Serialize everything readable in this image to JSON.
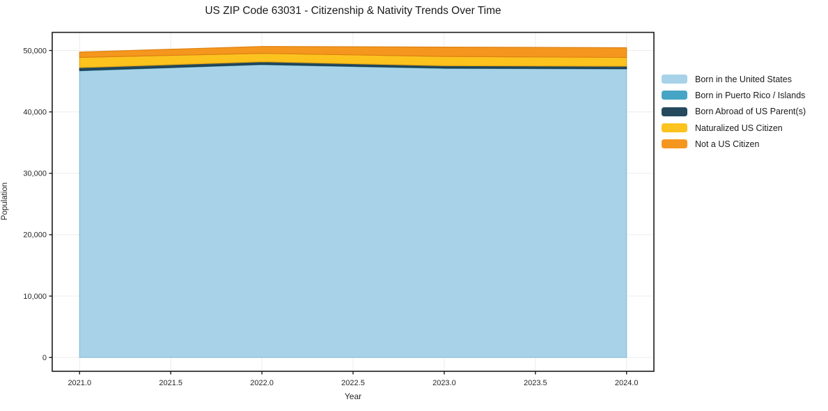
{
  "chart_data": {
    "type": "area",
    "stacked": true,
    "title": "US ZIP Code 63031 - Citizenship & Nativity Trends Over Time",
    "xlabel": "Year",
    "ylabel": "Population",
    "x": [
      2021,
      2022,
      2023,
      2024
    ],
    "series": [
      {
        "name": "Born in the United States",
        "color": "#A7D2E8",
        "edge_color": "#8CBFDA",
        "values": [
          46700,
          47700,
          47100,
          47000
        ]
      },
      {
        "name": "Born in Puerto Rico / Islands",
        "color": "#46A5C4",
        "edge_color": "#3A93B1",
        "values": [
          50,
          50,
          50,
          50
        ]
      },
      {
        "name": "Born Abroad of US Parent(s)",
        "color": "#25495D",
        "edge_color": "#1C3A4B",
        "values": [
          470,
          420,
          380,
          400
        ]
      },
      {
        "name": "Naturalized US Citizen",
        "color": "#FCC31F",
        "edge_color": "#E3A912",
        "values": [
          1660,
          1360,
          1510,
          1410
        ]
      },
      {
        "name": "Not a US Citizen",
        "color": "#F5971E",
        "edge_color": "#DD8112",
        "values": [
          870,
          1130,
          1520,
          1590
        ]
      }
    ],
    "xticks": {
      "values": [
        2021.0,
        2021.5,
        2022.0,
        2022.5,
        2023.0,
        2023.5,
        2024.0
      ],
      "labels": [
        "2021.0",
        "2021.5",
        "2022.0",
        "2022.5",
        "2023.0",
        "2023.5",
        "2024.0"
      ]
    },
    "yticks": {
      "values": [
        0,
        10000,
        20000,
        30000,
        40000,
        50000
      ],
      "labels": [
        "0",
        "10,000",
        "20,000",
        "30,000",
        "40,000",
        "50,000"
      ]
    },
    "xlim": [
      2020.85,
      2024.15
    ],
    "ylim": [
      -2250,
      52950
    ],
    "grid": true,
    "legend_position": "right-outside",
    "grid_color": "#ececec",
    "spine_color": "#1a1a1a",
    "tick_label_color": "#262626"
  }
}
